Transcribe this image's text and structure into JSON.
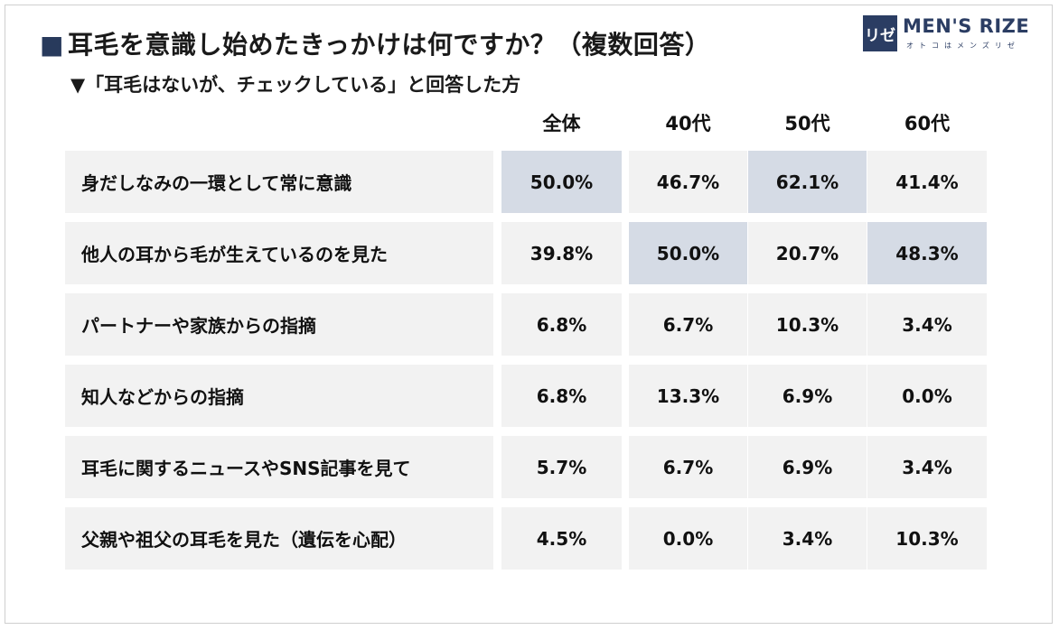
{
  "title_marker": "■",
  "title": "耳毛を意識し始めたきっかけは何ですか？（複数回答）",
  "subtitle": "▼「耳毛はないが、チェックしている」と回答した方",
  "logo": {
    "mark": "リゼ",
    "name": "MEN'S RIZE",
    "tagline": "オトコはメンズリゼ",
    "brand_color": "#2b3d63"
  },
  "colors": {
    "cell_bg": "#f2f2f2",
    "highlight_bg": "#d5dbe5",
    "accent": "#283a5c"
  },
  "chart_data": {
    "type": "table",
    "columns": [
      "全体",
      "40代",
      "50代",
      "60代"
    ],
    "rows": [
      {
        "label": "身だしなみの一環として常に意識",
        "values": [
          "50.0%",
          "46.7%",
          "62.1%",
          "41.4%"
        ],
        "highlight": [
          true,
          false,
          true,
          false
        ]
      },
      {
        "label": "他人の耳から毛が生えているのを見た",
        "values": [
          "39.8%",
          "50.0%",
          "20.7%",
          "48.3%"
        ],
        "highlight": [
          false,
          true,
          false,
          true
        ]
      },
      {
        "label": "パートナーや家族からの指摘",
        "values": [
          "6.8%",
          "6.7%",
          "10.3%",
          "3.4%"
        ],
        "highlight": [
          false,
          false,
          false,
          false
        ]
      },
      {
        "label": "知人などからの指摘",
        "values": [
          "6.8%",
          "13.3%",
          "6.9%",
          "0.0%"
        ],
        "highlight": [
          false,
          false,
          false,
          false
        ]
      },
      {
        "label": "耳毛に関するニュースやSNS記事を見て",
        "values": [
          "5.7%",
          "6.7%",
          "6.9%",
          "3.4%"
        ],
        "highlight": [
          false,
          false,
          false,
          false
        ]
      },
      {
        "label": "父親や祖父の耳毛を見た（遺伝を心配）",
        "values": [
          "4.5%",
          "0.0%",
          "3.4%",
          "10.3%"
        ],
        "highlight": [
          false,
          false,
          false,
          false
        ]
      }
    ]
  }
}
